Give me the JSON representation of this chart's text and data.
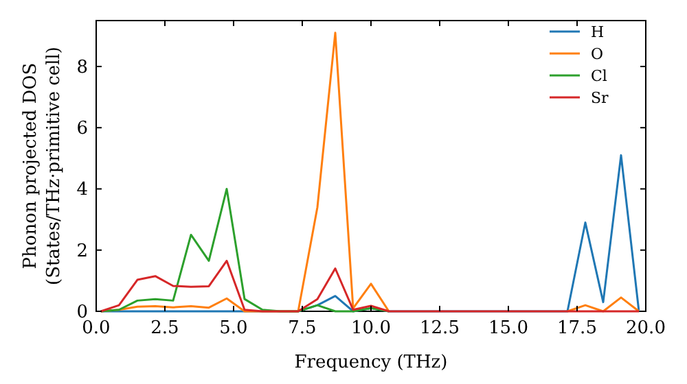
{
  "chart_data": {
    "type": "line",
    "xlabel": "Frequency (THz)",
    "ylabel": "Phonon projected DOS\n(States/THz·primitive cell)",
    "x": [
      0.17,
      0.83,
      1.5,
      2.15,
      2.8,
      3.45,
      4.1,
      4.75,
      5.4,
      6.05,
      6.7,
      7.35,
      8.05,
      8.7,
      9.35,
      10.0,
      10.65,
      11.3,
      11.95,
      12.6,
      13.25,
      13.9,
      14.55,
      15.2,
      15.85,
      16.5,
      17.15,
      17.8,
      18.45,
      19.1,
      19.75
    ],
    "series": [
      {
        "name": "H",
        "color": "#1f77b4",
        "values": [
          0,
          0,
          0,
          0,
          0,
          0,
          0,
          0,
          0,
          0,
          0,
          0,
          0.2,
          0.5,
          0,
          0.1,
          0,
          0,
          0,
          0,
          0,
          0,
          0,
          0,
          0,
          0,
          0,
          2.9,
          0.3,
          5.1,
          0
        ]
      },
      {
        "name": "O",
        "color": "#ff7f0e",
        "values": [
          0,
          0.05,
          0.15,
          0.17,
          0.13,
          0.17,
          0.12,
          0.42,
          0,
          0,
          0,
          0,
          3.4,
          9.1,
          0.1,
          0.9,
          0,
          null,
          null,
          null,
          null,
          null,
          null,
          null,
          null,
          null,
          0,
          0.2,
          0,
          0.45,
          0
        ]
      },
      {
        "name": "Cl",
        "color": "#2ca02c",
        "values": [
          0,
          0.05,
          0.35,
          0.4,
          0.35,
          2.5,
          1.65,
          4.0,
          0.4,
          0.05,
          0,
          0,
          0.2,
          0,
          0,
          0.1,
          0,
          null,
          null,
          null,
          null,
          null,
          null,
          null,
          null,
          null,
          null,
          null,
          null,
          null,
          null
        ]
      },
      {
        "name": "Sr",
        "color": "#d62728",
        "values": [
          0,
          0.2,
          1.03,
          1.15,
          0.83,
          0.8,
          0.82,
          1.65,
          0.05,
          0,
          0,
          0,
          0.4,
          1.4,
          0.05,
          0.18,
          0,
          0,
          0,
          0,
          0,
          0,
          0,
          0,
          0,
          0,
          0,
          0,
          0,
          0,
          0
        ]
      }
    ],
    "xlim": [
      0,
      20
    ],
    "ylim": [
      0,
      9.5
    ],
    "xticks": [
      {
        "value": 0,
        "label": "0.0"
      },
      {
        "value": 2.5,
        "label": "2.5"
      },
      {
        "value": 5,
        "label": "5.0"
      },
      {
        "value": 7.5,
        "label": "7.5"
      },
      {
        "value": 10,
        "label": "10.0"
      },
      {
        "value": 12.5,
        "label": "12.5"
      },
      {
        "value": 15,
        "label": "15.0"
      },
      {
        "value": 17.5,
        "label": "17.5"
      },
      {
        "value": 20,
        "label": "20.0"
      }
    ],
    "yticks": [
      0,
      2,
      4,
      6,
      8
    ],
    "legend": "top right",
    "grid": false,
    "marker": "none",
    "line_style": "solid"
  }
}
